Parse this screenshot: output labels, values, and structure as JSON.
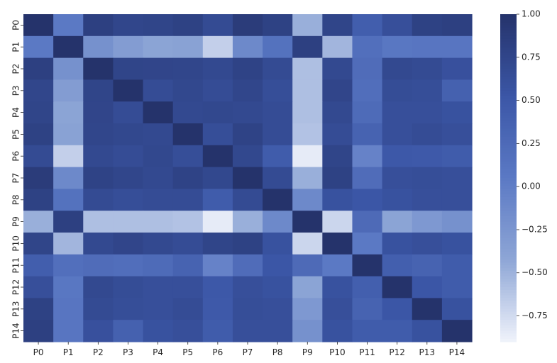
{
  "chart_data": {
    "type": "heatmap",
    "title": "",
    "xlabel": "",
    "ylabel": "",
    "x_labels": [
      "P0",
      "P1",
      "P2",
      "P3",
      "P4",
      "P5",
      "P6",
      "P7",
      "P8",
      "P9",
      "P10",
      "P11",
      "P12",
      "P13",
      "P14"
    ],
    "y_labels": [
      "P0",
      "P1",
      "P2",
      "P3",
      "P4",
      "P5",
      "P6",
      "P7",
      "P8",
      "P9",
      "P10",
      "P11",
      "P12",
      "P13",
      "P14"
    ],
    "values": [
      [
        1.0,
        0.05,
        0.82,
        0.74,
        0.76,
        0.8,
        0.68,
        0.88,
        0.8,
        -0.48,
        0.76,
        0.42,
        0.62,
        0.8,
        0.82
      ],
      [
        0.05,
        1.0,
        -0.2,
        -0.32,
        -0.4,
        -0.38,
        -0.68,
        -0.12,
        0.15,
        0.82,
        -0.52,
        0.18,
        0.08,
        0.1,
        0.1
      ],
      [
        0.82,
        -0.2,
        1.0,
        0.76,
        0.75,
        0.74,
        0.7,
        0.78,
        0.68,
        -0.58,
        0.7,
        0.22,
        0.7,
        0.68,
        0.6
      ],
      [
        0.74,
        -0.32,
        0.76,
        1.0,
        0.66,
        0.72,
        0.66,
        0.74,
        0.64,
        -0.58,
        0.75,
        0.2,
        0.65,
        0.64,
        0.38
      ],
      [
        0.76,
        -0.4,
        0.75,
        0.66,
        1.0,
        0.7,
        0.72,
        0.7,
        0.66,
        -0.58,
        0.7,
        0.24,
        0.62,
        0.62,
        0.58
      ],
      [
        0.8,
        -0.38,
        0.74,
        0.72,
        0.7,
        1.0,
        0.64,
        0.78,
        0.66,
        -0.6,
        0.66,
        0.35,
        0.62,
        0.66,
        0.62
      ],
      [
        0.68,
        -0.68,
        0.7,
        0.66,
        0.72,
        0.64,
        1.0,
        0.72,
        0.45,
        -0.85,
        0.76,
        -0.05,
        0.5,
        0.48,
        0.45
      ],
      [
        0.88,
        -0.12,
        0.78,
        0.74,
        0.7,
        0.78,
        0.72,
        1.0,
        0.68,
        -0.48,
        0.8,
        0.22,
        0.62,
        0.64,
        0.62
      ],
      [
        0.8,
        0.15,
        0.68,
        0.64,
        0.66,
        0.66,
        0.45,
        0.68,
        1.0,
        -0.12,
        0.58,
        0.52,
        0.58,
        0.62,
        0.62
      ],
      [
        -0.48,
        0.82,
        -0.58,
        -0.58,
        -0.58,
        -0.6,
        -0.85,
        -0.48,
        -0.12,
        1.0,
        -0.72,
        0.25,
        -0.4,
        -0.28,
        -0.2
      ],
      [
        0.76,
        -0.52,
        0.7,
        0.75,
        0.7,
        0.66,
        0.76,
        0.8,
        0.58,
        -0.72,
        1.0,
        0.05,
        0.58,
        0.62,
        0.58
      ],
      [
        0.42,
        0.18,
        0.22,
        0.2,
        0.24,
        0.35,
        -0.05,
        0.22,
        0.52,
        0.25,
        0.05,
        1.0,
        0.4,
        0.35,
        0.45
      ],
      [
        0.62,
        0.08,
        0.7,
        0.65,
        0.62,
        0.62,
        0.5,
        0.62,
        0.58,
        -0.4,
        0.58,
        0.4,
        1.0,
        0.52,
        0.45
      ],
      [
        0.8,
        0.1,
        0.68,
        0.64,
        0.62,
        0.66,
        0.48,
        0.64,
        0.62,
        -0.28,
        0.62,
        0.35,
        0.52,
        1.0,
        0.58
      ],
      [
        0.82,
        0.1,
        0.6,
        0.38,
        0.58,
        0.62,
        0.45,
        0.62,
        0.62,
        -0.2,
        0.58,
        0.45,
        0.45,
        0.58,
        1.0
      ]
    ],
    "vmin": -0.9,
    "vmax": 1.0,
    "colorbar": {
      "ticks": [
        1.0,
        0.75,
        0.5,
        0.25,
        0.0,
        -0.25,
        -0.5,
        -0.75
      ],
      "tick_labels": [
        "1.00",
        "0.75",
        "0.50",
        "0.25",
        "0.00",
        "−0.25",
        "−0.50",
        "−0.75"
      ]
    },
    "colormap": [
      "#f0f3fb",
      "#8ea6d6",
      "#5b79c4",
      "#3b56a6",
      "#25336b"
    ]
  }
}
